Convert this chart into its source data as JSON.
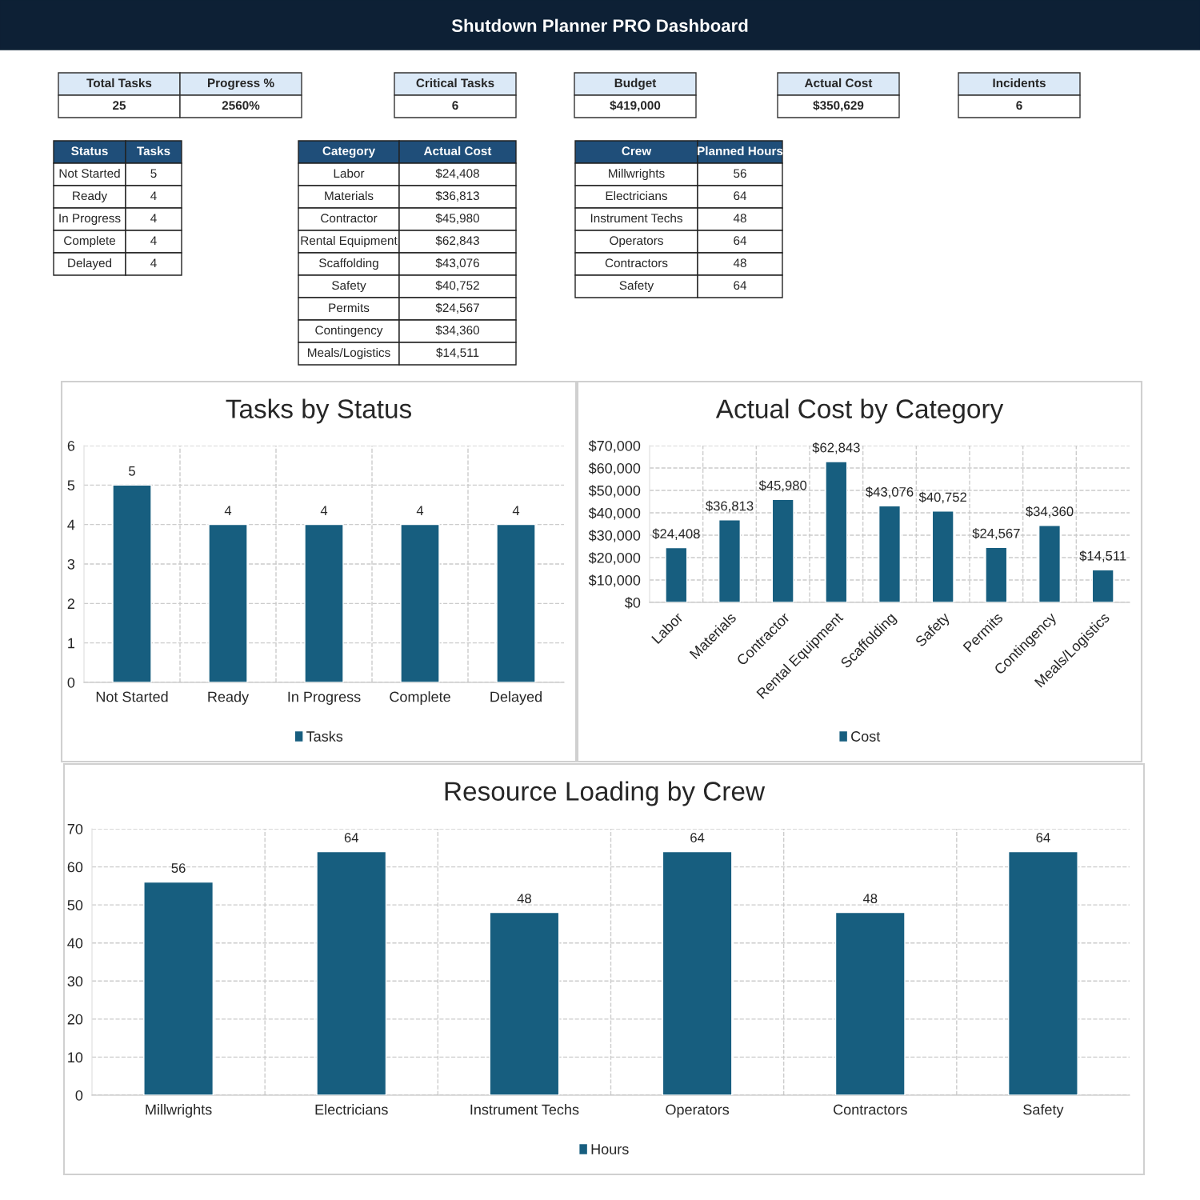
{
  "chart_data": [
    {
      "type": "other",
      "title": "Shutdown Planner PRO Dashboard",
      "categories": [
        "Total Tasks",
        "Progress %",
        "Critical Tasks",
        "Budget",
        "Actual Cost",
        "Incidents"
      ],
      "value_labels": [
        "25",
        "2560%",
        "6",
        "$419,000",
        "$350,629",
        "6"
      ]
    },
    {
      "type": "other",
      "xlabel": "Status",
      "ylabel": "Tasks",
      "categories": [
        "Not Started",
        "Ready",
        "In Progress",
        "Complete",
        "Delayed"
      ],
      "values": [
        5,
        4,
        4,
        4,
        4
      ],
      "data_labels": true
    },
    {
      "type": "other",
      "xlabel": "Category",
      "ylabel": "Actual Cost",
      "categories": [
        "Labor",
        "Materials",
        "Contractor",
        "Rental Equipment",
        "Scaffolding",
        "Safety",
        "Permits",
        "Contingency",
        "Meals/Logistics"
      ],
      "value_labels": [
        "$24,408",
        "$36,813",
        "$45,980",
        "$62,843",
        "$43,076",
        "$40,752",
        "$24,567",
        "$34,360",
        "$14,511"
      ]
    },
    {
      "type": "other",
      "xlabel": "Crew",
      "ylabel": "Planned Hours",
      "categories": [
        "Millwrights",
        "Electricians",
        "Instrument Techs",
        "Operators",
        "Contractors",
        "Safety"
      ],
      "values": [
        56,
        64,
        48,
        64,
        48,
        64
      ],
      "data_labels": true
    },
    {
      "type": "bar",
      "title": "Tasks by Status",
      "categories": [
        "Not Started",
        "Ready",
        "In Progress",
        "Complete",
        "Delayed"
      ],
      "series": [
        {
          "name": "Tasks",
          "color": "#175e7f",
          "values": [
            5,
            4,
            4,
            4,
            4
          ]
        }
      ],
      "ylim": [
        0,
        6
      ],
      "yticks": [
        0,
        1,
        2,
        3,
        4,
        5,
        6
      ],
      "grid": true,
      "legend": "bottom",
      "data_labels": true
    },
    {
      "type": "bar",
      "title": "Actual Cost by Category",
      "categories": [
        "Labor",
        "Materials",
        "Contractor",
        "Rental Equipment",
        "Scaffolding",
        "Safety",
        "Permits",
        "Contingency",
        "Meals/Logistics"
      ],
      "series": [
        {
          "name": "Cost",
          "color": "#175e7f",
          "values": [
            24408,
            36813,
            45980,
            62843,
            43076,
            40752,
            24567,
            34360,
            14511
          ],
          "value_labels": [
            "$24,408",
            "$36,813",
            "$45,980",
            "$62,843",
            "$43,076",
            "$40,752",
            "$24,567",
            "$34,360",
            "$14,511"
          ]
        }
      ],
      "ylim": [
        0,
        70000
      ],
      "yticks": [
        {
          "value": 0,
          "label": "$0"
        },
        {
          "value": 10000,
          "label": "$10,000"
        },
        {
          "value": 20000,
          "label": "$20,000"
        },
        {
          "value": 30000,
          "label": "$30,000"
        },
        {
          "value": 40000,
          "label": "$40,000"
        },
        {
          "value": 50000,
          "label": "$50,000"
        },
        {
          "value": 60000,
          "label": "$60,000"
        },
        {
          "value": 70000,
          "label": "$70,000"
        }
      ],
      "grid": true,
      "legend": "bottom"
    },
    {
      "type": "bar",
      "title": "Resource Loading by Crew",
      "categories": [
        "Millwrights",
        "Electricians",
        "Instrument Techs",
        "Operators",
        "Contractors",
        "Safety"
      ],
      "series": [
        {
          "name": "Hours",
          "color": "#175e7f",
          "values": [
            56,
            64,
            48,
            64,
            48,
            64
          ]
        }
      ],
      "ylim": [
        0,
        70
      ],
      "yticks": [
        0,
        10,
        20,
        30,
        40,
        50,
        60,
        70
      ],
      "grid": true,
      "legend": "bottom",
      "data_labels": true
    }
  ]
}
